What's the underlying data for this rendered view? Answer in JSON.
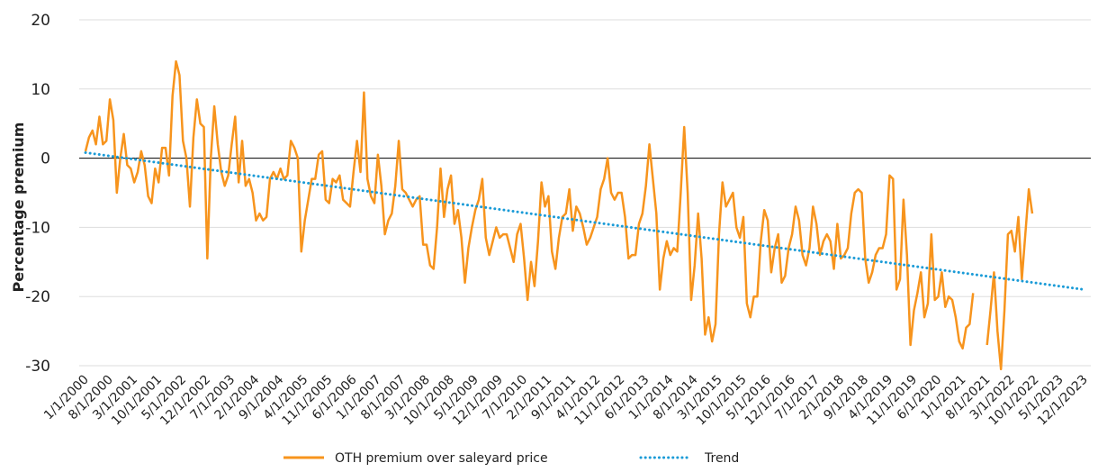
{
  "chart_data": {
    "type": "line",
    "y_label": "Percentage premium",
    "categories": [
      "1/1/2000",
      null,
      null,
      null,
      null,
      null,
      null,
      "8/1/2000",
      null,
      null,
      null,
      null,
      null,
      null,
      "3/1/2001",
      null,
      null,
      null,
      null,
      null,
      null,
      "10/1/2001",
      null,
      null,
      null,
      null,
      null,
      null,
      "5/1/2002",
      null,
      null,
      null,
      null,
      null,
      null,
      "12/1/2002",
      null,
      null,
      null,
      null,
      null,
      null,
      "7/1/2003",
      null,
      null,
      null,
      null,
      null,
      null,
      "2/1/2004",
      null,
      null,
      null,
      null,
      null,
      null,
      "9/1/2004",
      null,
      null,
      null,
      null,
      null,
      null,
      "4/1/2005",
      null,
      null,
      null,
      null,
      null,
      null,
      "11/1/2005",
      null,
      null,
      null,
      null,
      null,
      null,
      "6/1/2006",
      null,
      null,
      null,
      null,
      null,
      null,
      "1/1/2007",
      null,
      null,
      null,
      null,
      null,
      null,
      "8/1/2007",
      null,
      null,
      null,
      null,
      null,
      null,
      "3/1/2008",
      null,
      null,
      null,
      null,
      null,
      null,
      "10/1/2008",
      null,
      null,
      null,
      null,
      null,
      null,
      "5/1/2009",
      null,
      null,
      null,
      null,
      null,
      null,
      "12/1/2009",
      null,
      null,
      null,
      null,
      null,
      null,
      "7/1/2010",
      null,
      null,
      null,
      null,
      null,
      null,
      "2/1/2011",
      null,
      null,
      null,
      null,
      null,
      null,
      "9/1/2011",
      null,
      null,
      null,
      null,
      null,
      null,
      "4/1/2012",
      null,
      null,
      null,
      null,
      null,
      null,
      "11/1/2012",
      null,
      null,
      null,
      null,
      null,
      null,
      "6/1/2013",
      null,
      null,
      null,
      null,
      null,
      null,
      "1/1/2014",
      null,
      null,
      null,
      null,
      null,
      null,
      "8/1/2014",
      null,
      null,
      null,
      null,
      null,
      null,
      "3/1/2015",
      null,
      null,
      null,
      null,
      null,
      null,
      "10/1/2015",
      null,
      null,
      null,
      null,
      null,
      null,
      "5/1/2016",
      null,
      null,
      null,
      null,
      null,
      null,
      "12/1/2016",
      null,
      null,
      null,
      null,
      null,
      null,
      "7/1/2017",
      null,
      null,
      null,
      null,
      null,
      null,
      "2/1/2018",
      null,
      null,
      null,
      null,
      null,
      null,
      "9/1/2018",
      null,
      null,
      null,
      null,
      null,
      null,
      "4/1/2019",
      null,
      null,
      null,
      null,
      null,
      null,
      "11/1/2019",
      null,
      null,
      null,
      null,
      null,
      null,
      "6/1/2020",
      null,
      null,
      null,
      null,
      null,
      null,
      "1/1/2021",
      null,
      null,
      null,
      null,
      null,
      null,
      "8/1/2021",
      null,
      null,
      null,
      null,
      null,
      null,
      "3/1/2022",
      null,
      null,
      null,
      null,
      null,
      null,
      "10/1/2022",
      null,
      null,
      null,
      null,
      null,
      null,
      "5/1/2023",
      null,
      null,
      null,
      null,
      null,
      null,
      "12/1/2023"
    ],
    "series": [
      {
        "name": "OTH premium over saleyard price",
        "color": "#f7941d",
        "values": [
          1,
          3,
          4,
          2,
          6,
          2,
          2.5,
          8.5,
          5.5,
          -5,
          0,
          3.5,
          -1,
          -1.5,
          -3.5,
          -2,
          1,
          -1,
          -5.5,
          -6.5,
          -1.5,
          -3.5,
          1.5,
          1.5,
          -2.5,
          9,
          14,
          12,
          2.5,
          0,
          -7,
          3,
          8.5,
          5,
          4.5,
          -14.5,
          0,
          7.5,
          2,
          -2,
          -4,
          -2.5,
          2,
          6,
          -3.5,
          2.5,
          -4,
          -3,
          -5,
          -9,
          -8,
          -9,
          -8.5,
          -3,
          -2,
          -3,
          -1.5,
          -3,
          -2.5,
          2.5,
          1.5,
          0,
          -13.5,
          -9,
          -6,
          -3,
          -3,
          0.5,
          1,
          -6,
          -6.5,
          -3,
          -3.5,
          -2.5,
          -6,
          -6.5,
          -7,
          -2,
          2.5,
          -2,
          9.5,
          -3,
          -5.5,
          -6.5,
          0.5,
          -4,
          -11,
          -9,
          -8,
          -4,
          2.5,
          -4.5,
          -5,
          -6,
          -7,
          -6,
          -5.5,
          -12.5,
          -12.5,
          -15.5,
          -16,
          -10,
          -1.5,
          -8.5,
          -4.5,
          -2.5,
          -9.5,
          -7.5,
          -11.5,
          -18,
          -13,
          -10,
          -7.5,
          -6,
          -3,
          -11.5,
          -14,
          -12,
          -10,
          -11.5,
          -11,
          -11,
          -13,
          -15,
          -11,
          -9.5,
          -14.5,
          -20.5,
          -15,
          -18.5,
          -12,
          -3.5,
          -7,
          -5.5,
          -13.5,
          -16,
          -11.5,
          -8.5,
          -8,
          -4.5,
          -10.5,
          -7,
          -8,
          -10,
          -12.5,
          -11.5,
          -10,
          -8.5,
          -4.5,
          -3,
          0,
          -5,
          -6,
          -5,
          -5,
          -8.5,
          -14.5,
          -14,
          -14,
          -9.5,
          -8,
          -4,
          2,
          -3,
          -8,
          -19,
          -14.5,
          -12,
          -14,
          -13,
          -13.5,
          -5,
          4.5,
          -5,
          -20.5,
          -15.5,
          -8,
          -14.5,
          -25.5,
          -23,
          -26.5,
          -24,
          -11,
          -3.5,
          -7,
          -6,
          -5,
          -10,
          -11.5,
          -8.5,
          -21,
          -23,
          -20,
          -20,
          -12,
          -7.5,
          -9,
          -16.5,
          -13,
          -11,
          -18,
          -17,
          -13,
          -11,
          -7,
          -9,
          -14,
          -15.5,
          -13,
          -7,
          -9.5,
          -14,
          -12,
          -11,
          -12,
          -16,
          -9.5,
          -14.5,
          -14,
          -13,
          -8,
          -5,
          -4.5,
          -5,
          -14.5,
          -18,
          -16.5,
          -14,
          -13,
          -13,
          -11,
          -2.5,
          -3,
          -19,
          -17.5,
          -6,
          -14,
          -27,
          -22,
          -19.5,
          -16.5,
          -23,
          -21,
          -11,
          -20.5,
          -20,
          -16.5,
          -21.5,
          -20,
          -20.5,
          -23,
          -26.5,
          -27.5,
          -24.5,
          -24,
          -19.5,
          null,
          null,
          null,
          -27,
          -22,
          -16.5,
          -25,
          -30.5,
          -22,
          -11,
          -10.5,
          -13.5,
          -8.5,
          -17.5,
          -11,
          -4.5,
          -8,
          null,
          null,
          null,
          null,
          null,
          null,
          null,
          null,
          null,
          null,
          null,
          null,
          null,
          null,
          null
        ]
      }
    ],
    "trend": {
      "name": "Trend",
      "color": "#1a9bd7",
      "x": [
        "1/1/2000",
        "12/1/2023"
      ],
      "values": [
        0.8,
        -19
      ]
    },
    "ylim": [
      -30,
      20
    ],
    "yticks": [
      -30,
      -20,
      -10,
      0,
      10,
      20
    ],
    "grid": true,
    "legend": "bottom"
  }
}
